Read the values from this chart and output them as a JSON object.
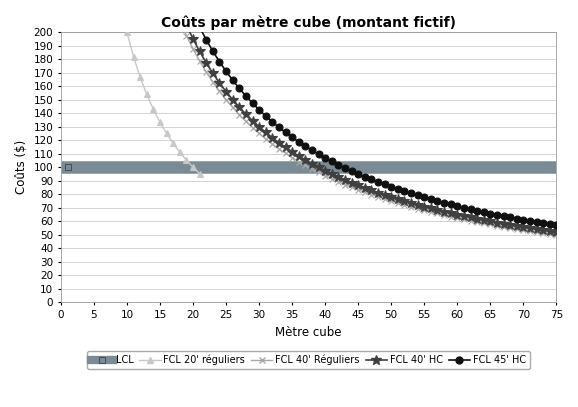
{
  "title": "Coûts par mètre cube (montant fictif)",
  "xlabel": "Mètre cube",
  "ylabel": "Coûts ($)",
  "xlim": [
    0,
    75
  ],
  "ylim": [
    0,
    200
  ],
  "yticks": [
    0,
    10,
    20,
    30,
    40,
    50,
    60,
    70,
    80,
    90,
    100,
    110,
    120,
    130,
    140,
    150,
    160,
    170,
    180,
    190,
    200
  ],
  "xticks": [
    0,
    5,
    10,
    15,
    20,
    25,
    30,
    35,
    40,
    45,
    50,
    55,
    60,
    65,
    70,
    75
  ],
  "series": [
    {
      "name": "LCL",
      "type": "hline",
      "y": 100,
      "color": "#7a8b96",
      "linewidth": 9,
      "marker": "s",
      "markersize": 5,
      "zorder": 2
    },
    {
      "name": "FCL 20' réguliers",
      "type": "hyperbola",
      "fixed_cost": 2000,
      "x_start": 10.0,
      "x_end": 21.0,
      "color": "#c8c8c8",
      "linewidth": 1.0,
      "marker": "^",
      "markersize": 5,
      "zorder": 3
    },
    {
      "name": "FCL 40' Réguliers",
      "type": "hyperbola",
      "fixed_cost": 3750,
      "x_start": 18.75,
      "x_end": 75.0,
      "color": "#a8a8a8",
      "linewidth": 1.0,
      "marker": "x",
      "markersize": 5,
      "zorder": 3
    },
    {
      "name": "FCL 40' HC",
      "type": "hyperbola",
      "fixed_cost": 3900,
      "x_start": 19.5,
      "x_end": 75.0,
      "color": "#404040",
      "linewidth": 1.2,
      "marker": "*",
      "markersize": 7,
      "zorder": 4
    },
    {
      "name": "FCL 45' HC",
      "type": "hyperbola",
      "fixed_cost": 4275,
      "x_start": 21.375,
      "x_end": 75.0,
      "color": "#101010",
      "linewidth": 1.2,
      "marker": "o",
      "markersize": 5,
      "zorder": 5
    }
  ],
  "background_color": "#ffffff",
  "grid_color": "#cccccc",
  "title_fontsize": 10,
  "label_fontsize": 8.5,
  "tick_fontsize": 7.5
}
